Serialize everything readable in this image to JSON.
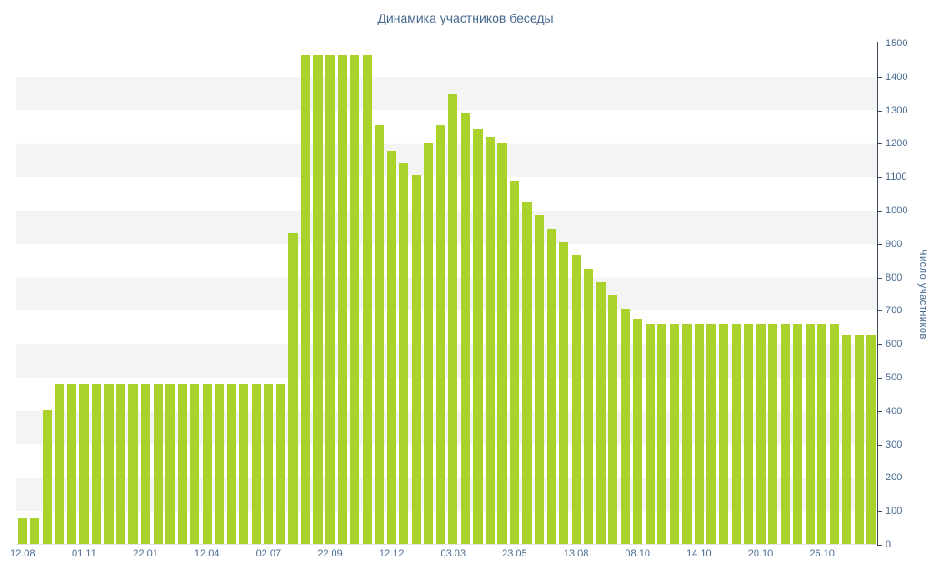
{
  "page": {
    "background": "#ffffff"
  },
  "chart_data": {
    "type": "bar",
    "title": "Динамика участников беседы",
    "ylabel": "Число участников",
    "xlabel": "",
    "ylim": [
      0,
      1500
    ],
    "y_tick_step": 100,
    "y_ticks": [
      0,
      100,
      200,
      300,
      400,
      500,
      600,
      700,
      800,
      900,
      1000,
      1100,
      1200,
      1300,
      1400,
      1500
    ],
    "x_tick_labels": [
      "12.08",
      "01.11",
      "22.01",
      "12.04",
      "02.07",
      "22.09",
      "12.12",
      "03.03",
      "23.05",
      "13.08",
      "08.10",
      "14.10",
      "20.10",
      "26.10"
    ],
    "x_label_every_n_bars": 5,
    "grid": "horizontal-bands",
    "legend": "none",
    "values": [
      75,
      75,
      400,
      480,
      480,
      480,
      480,
      480,
      480,
      480,
      480,
      480,
      480,
      480,
      480,
      480,
      480,
      480,
      480,
      480,
      480,
      480,
      930,
      1465,
      1465,
      1465,
      1465,
      1465,
      1465,
      1255,
      1180,
      1140,
      1105,
      1200,
      1255,
      1350,
      1290,
      1245,
      1220,
      1200,
      1090,
      1025,
      985,
      945,
      905,
      865,
      825,
      785,
      745,
      705,
      675,
      660,
      660,
      660,
      660,
      660,
      660,
      660,
      660,
      660,
      660,
      660,
      660,
      660,
      660,
      660,
      660,
      625,
      625,
      625
    ],
    "colors": {
      "bar": "#a9d32b",
      "band": "#f4f4f4",
      "text": "#44688f",
      "axis": "#3d4a59"
    }
  }
}
